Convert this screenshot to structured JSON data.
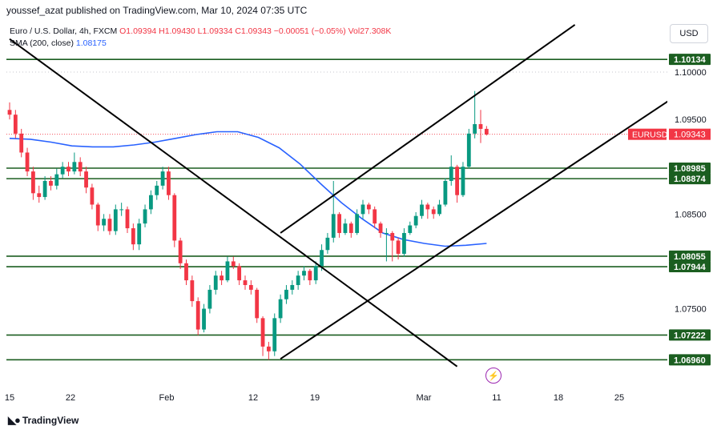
{
  "publisher": "youssef_azat published on TradingView.com, Mar 10, 2024 07:35 UTC",
  "legend": {
    "symbol": "Euro / U.S. Dollar, 4h, FXCM",
    "ohlc": "O1.09394 H1.09430 L1.09334 C1.09343 −0.00051 (−0.05%) Vol27.308K",
    "sma_label": "SMA (200, close)",
    "sma_value": "1.08175"
  },
  "currency": "USD",
  "footer": "TradingView",
  "colors": {
    "up": "#089981",
    "down": "#f23645",
    "sma": "#2962ff",
    "level": "#1b5e20",
    "trend": "#000000",
    "tag_bg": "#1b5e20",
    "price_tag_bg": "#f23645"
  },
  "chart_data": {
    "type": "candlestick",
    "symbol": "EURUSD",
    "timeframe": "4h",
    "y_ticks": [
      1.075,
      1.085,
      1.095,
      1.1
    ],
    "y_range": [
      1.0687,
      1.1055
    ],
    "x_ticks": [
      "15",
      "22",
      "Feb",
      "12",
      "19",
      "Mar",
      "11",
      "18",
      "25"
    ],
    "last_price": {
      "label": "EURUSD",
      "value": "1.09343"
    },
    "levels": [
      "1.10134",
      "1.08985",
      "1.08874",
      "1.08055",
      "1.07944",
      "1.07222",
      "1.06960"
    ],
    "sma_200": [
      1.093,
      1.0929,
      1.0926,
      1.0922,
      1.0921,
      1.0921,
      1.0923,
      1.0926,
      1.093,
      1.0934,
      1.0937,
      1.0937,
      1.0931,
      1.092,
      1.0903,
      1.0882,
      1.0862,
      1.0845,
      1.083,
      1.0823,
      1.0819,
      1.0816,
      1.0817,
      1.0819
    ],
    "trend_lines": "two ascending channel lines, one descending line from top-left",
    "closes": [
      1.0955,
      1.0935,
      1.0915,
      1.0895,
      1.0872,
      1.0868,
      1.0885,
      1.088,
      1.0892,
      1.09,
      1.0895,
      1.0905,
      1.0895,
      1.0878,
      1.086,
      1.0838,
      1.0845,
      1.0832,
      1.0855,
      1.0855,
      1.0835,
      1.0818,
      1.084,
      1.0855,
      1.087,
      1.088,
      1.0895,
      1.087,
      1.0822,
      1.0798,
      1.078,
      1.0758,
      1.0728,
      1.075,
      1.077,
      1.0785,
      1.078,
      1.08,
      1.0795,
      1.078,
      1.0775,
      1.077,
      1.074,
      1.071,
      1.0705,
      1.074,
      1.076,
      1.077,
      1.0775,
      1.0785,
      1.079,
      1.078,
      1.0795,
      1.0812,
      1.0825,
      1.085,
      1.083,
      1.084,
      1.083,
      1.085,
      1.086,
      1.0855,
      1.084,
      1.083,
      1.083,
      1.0822,
      1.0808,
      1.083,
      1.0838,
      1.0848,
      1.086,
      1.0855,
      1.085,
      1.086,
      1.0885,
      1.09,
      1.087,
      1.09,
      1.0935,
      1.0945,
      1.094,
      1.0934
    ],
    "opens": [
      1.096,
      1.0955,
      1.0935,
      1.0915,
      1.0895,
      1.0872,
      1.0868,
      1.0885,
      1.088,
      1.0892,
      1.09,
      1.0895,
      1.0905,
      1.0895,
      1.0878,
      1.086,
      1.0838,
      1.0845,
      1.0832,
      1.0855,
      1.0855,
      1.0835,
      1.0818,
      1.084,
      1.0855,
      1.087,
      1.088,
      1.0895,
      1.087,
      1.0822,
      1.0798,
      1.078,
      1.0758,
      1.0728,
      1.075,
      1.077,
      1.0785,
      1.078,
      1.08,
      1.0795,
      1.078,
      1.0775,
      1.077,
      1.074,
      1.071,
      1.0705,
      1.074,
      1.076,
      1.077,
      1.0775,
      1.0785,
      1.079,
      1.078,
      1.0795,
      1.0812,
      1.0825,
      1.085,
      1.083,
      1.084,
      1.083,
      1.085,
      1.086,
      1.0855,
      1.084,
      1.083,
      1.083,
      1.0822,
      1.0808,
      1.083,
      1.0838,
      1.0848,
      1.086,
      1.0855,
      1.085,
      1.086,
      1.0885,
      1.09,
      1.087,
      1.09,
      1.0935,
      1.0945,
      1.094
    ],
    "highs": [
      1.0968,
      1.096,
      1.094,
      1.092,
      1.09,
      1.088,
      1.089,
      1.089,
      1.0898,
      1.0905,
      1.0905,
      1.0915,
      1.091,
      1.09,
      1.0882,
      1.0862,
      1.085,
      1.085,
      1.086,
      1.0862,
      1.0858,
      1.084,
      1.0845,
      1.086,
      1.0875,
      1.0885,
      1.09,
      1.09,
      1.0872,
      1.0825,
      1.0802,
      1.0785,
      1.0762,
      1.0755,
      1.0775,
      1.079,
      1.079,
      1.0805,
      1.0805,
      1.0798,
      1.0785,
      1.078,
      1.0772,
      1.0742,
      1.0715,
      1.0745,
      1.0765,
      1.0775,
      1.078,
      1.079,
      1.0795,
      1.0792,
      1.08,
      1.0818,
      1.083,
      1.0885,
      1.0852,
      1.0845,
      1.0842,
      1.0855,
      1.0865,
      1.0862,
      1.0858,
      1.0842,
      1.0835,
      1.0832,
      1.0825,
      1.0835,
      1.0842,
      1.0852,
      1.0865,
      1.0862,
      1.0858,
      1.0865,
      1.0888,
      1.0912,
      1.0902,
      1.0905,
      1.094,
      1.098,
      1.096,
      1.0943
    ],
    "lows": [
      1.095,
      1.093,
      1.091,
      1.089,
      1.0865,
      1.0862,
      1.0865,
      1.0875,
      1.0876,
      1.0888,
      1.089,
      1.0892,
      1.089,
      1.0872,
      1.0855,
      1.0832,
      1.0832,
      1.0828,
      1.0828,
      1.0848,
      1.083,
      1.0812,
      1.0812,
      1.0836,
      1.085,
      1.0865,
      1.0876,
      1.0865,
      1.0815,
      1.0792,
      1.0775,
      1.0752,
      1.0722,
      1.0725,
      1.0745,
      1.0765,
      1.0775,
      1.0778,
      1.0792,
      1.0775,
      1.077,
      1.0765,
      1.0735,
      1.07,
      1.0696,
      1.07,
      1.0735,
      1.0755,
      1.0765,
      1.077,
      1.078,
      1.0775,
      1.0776,
      1.079,
      1.0808,
      1.082,
      1.0825,
      1.0828,
      1.0825,
      1.0828,
      1.0845,
      1.085,
      1.0835,
      1.0825,
      1.08,
      1.08,
      1.0802,
      1.0805,
      1.0828,
      1.0835,
      1.0845,
      1.0845,
      1.0845,
      1.0848,
      1.0858,
      1.088,
      1.0862,
      1.0868,
      1.0898,
      1.093,
      1.0925,
      1.0933
    ]
  }
}
